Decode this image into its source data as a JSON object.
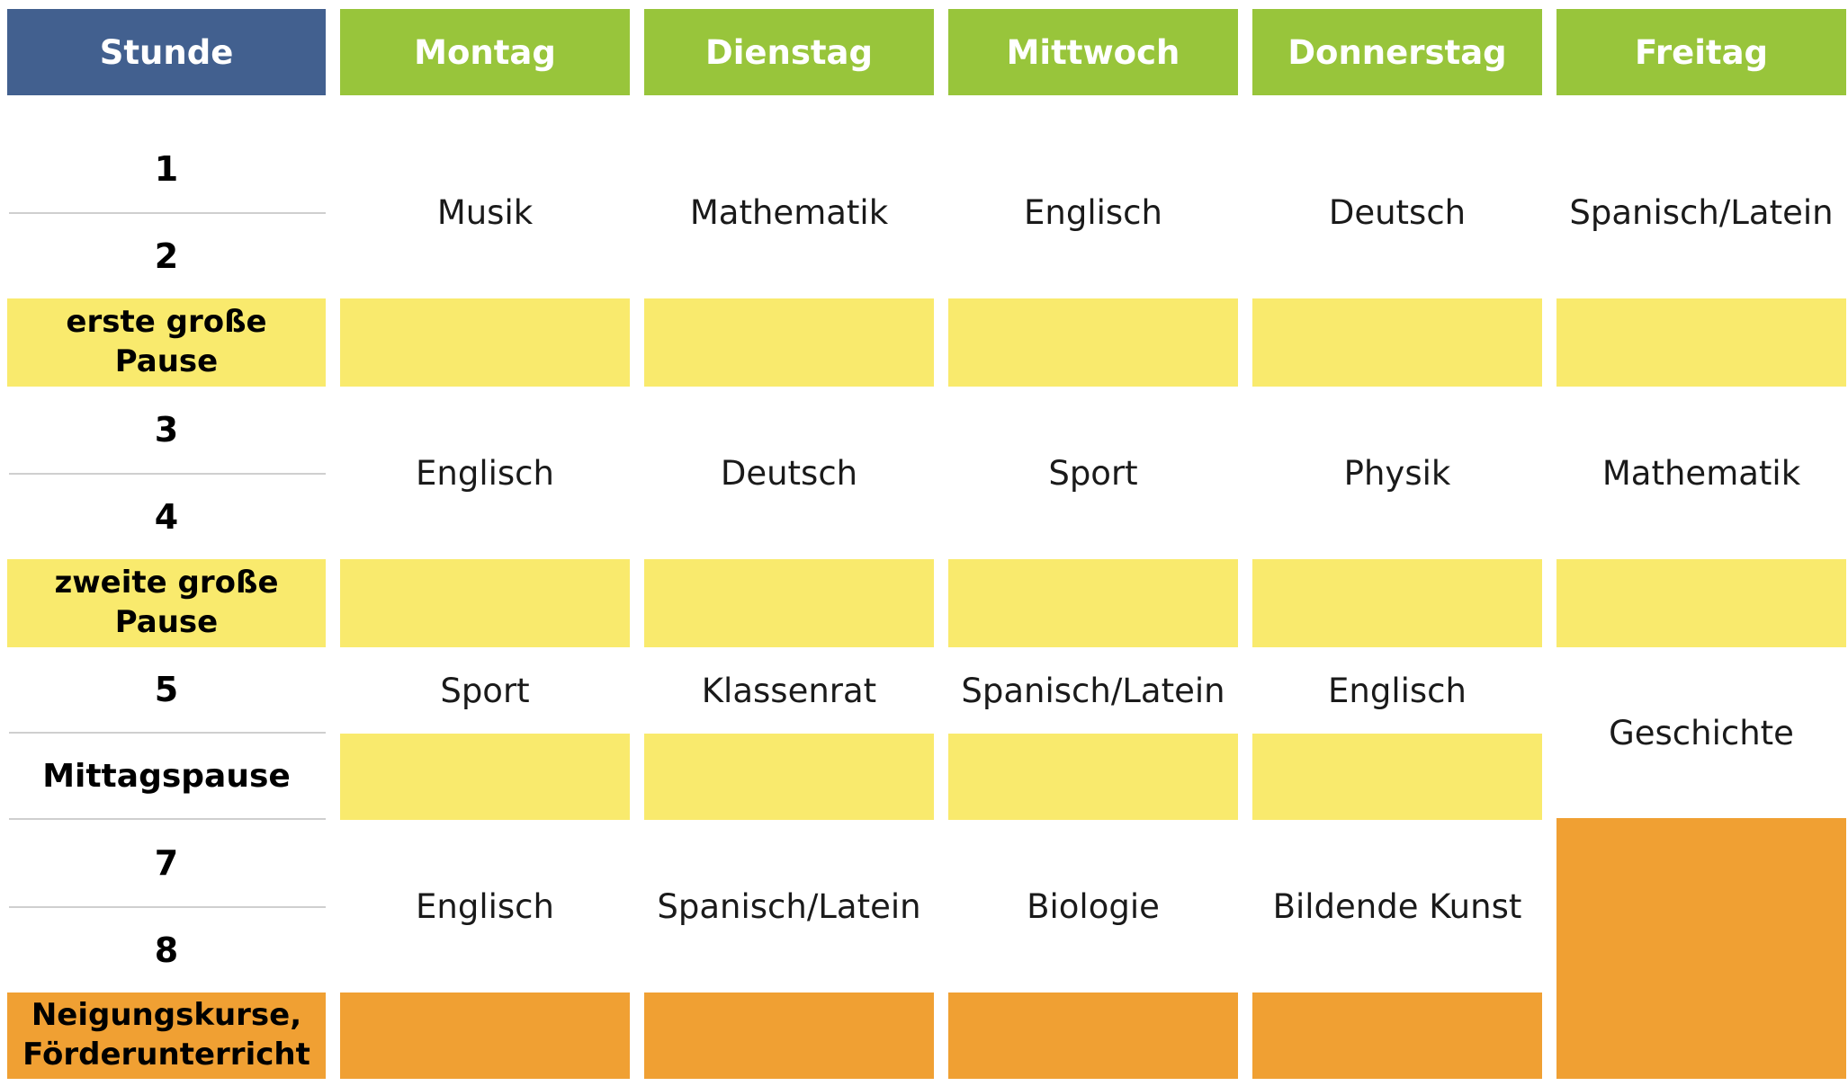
{
  "header": {
    "stunde": "Stunde",
    "days": [
      "Montag",
      "Dienstag",
      "Mittwoch",
      "Donnerstag",
      "Freitag"
    ]
  },
  "periods": {
    "p1": "1",
    "p2": "2",
    "pause1": "erste große Pause",
    "p3": "3",
    "p4": "4",
    "pause2": "zweite große Pause",
    "p5": "5",
    "mittag": "Mittagspause",
    "p7": "7",
    "p8": "8",
    "neigung": "Neigungskurse, Förderunterricht"
  },
  "blocks": {
    "block1": [
      "Musik",
      "Mathematik",
      "Englisch",
      "Deutsch",
      "Spanisch/Latein"
    ],
    "block2": [
      "Englisch",
      "Deutsch",
      "Sport",
      "Physik",
      "Mathematik"
    ],
    "period5": [
      "Sport",
      "Klassenrat",
      "Spanisch/Latein",
      "Englisch"
    ],
    "friday_long": "Geschichte",
    "block4": [
      "Englisch",
      "Spanisch/Latein",
      "Biologie",
      "Bildende Kunst"
    ]
  },
  "colors": {
    "header_stunde": "#42608f",
    "header_day": "#98c53b",
    "pause": "#f9ea6d",
    "afternoon": "#f0a033"
  }
}
